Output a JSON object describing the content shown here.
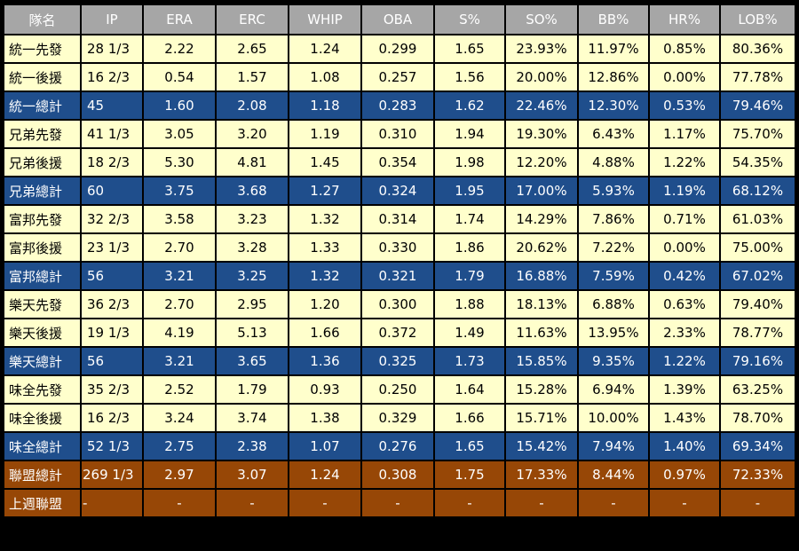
{
  "headers": [
    "隊名",
    "IP",
    "ERA",
    "ERC",
    "WHIP",
    "OBA",
    "S%",
    "SO%",
    "BB%",
    "HR%",
    "LOB%"
  ],
  "rows": [
    {
      "type": "pos",
      "cells": [
        "統一先發",
        "28 1/3",
        "2.22",
        "2.65",
        "1.24",
        "0.299",
        "1.65",
        "23.93%",
        "11.97%",
        "0.85%",
        "80.36%"
      ]
    },
    {
      "type": "pos",
      "cells": [
        "統一後援",
        "16 2/3",
        "0.54",
        "1.57",
        "1.08",
        "0.257",
        "1.56",
        "20.00%",
        "12.86%",
        "0.00%",
        "77.78%"
      ]
    },
    {
      "type": "team",
      "cells": [
        "統一總計",
        "45",
        "1.60",
        "2.08",
        "1.18",
        "0.283",
        "1.62",
        "22.46%",
        "12.30%",
        "0.53%",
        "79.46%"
      ]
    },
    {
      "type": "pos",
      "cells": [
        "兄弟先發",
        "41 1/3",
        "3.05",
        "3.20",
        "1.19",
        "0.310",
        "1.94",
        "19.30%",
        "6.43%",
        "1.17%",
        "75.70%"
      ]
    },
    {
      "type": "pos",
      "cells": [
        "兄弟後援",
        "18 2/3",
        "5.30",
        "4.81",
        "1.45",
        "0.354",
        "1.98",
        "12.20%",
        "4.88%",
        "1.22%",
        "54.35%"
      ]
    },
    {
      "type": "team",
      "cells": [
        "兄弟總計",
        "60",
        "3.75",
        "3.68",
        "1.27",
        "0.324",
        "1.95",
        "17.00%",
        "5.93%",
        "1.19%",
        "68.12%"
      ]
    },
    {
      "type": "pos",
      "cells": [
        "富邦先發",
        "32 2/3",
        "3.58",
        "3.23",
        "1.32",
        "0.314",
        "1.74",
        "14.29%",
        "7.86%",
        "0.71%",
        "61.03%"
      ]
    },
    {
      "type": "pos",
      "cells": [
        "富邦後援",
        "23 1/3",
        "2.70",
        "3.28",
        "1.33",
        "0.330",
        "1.86",
        "20.62%",
        "7.22%",
        "0.00%",
        "75.00%"
      ]
    },
    {
      "type": "team",
      "cells": [
        "富邦總計",
        "56",
        "3.21",
        "3.25",
        "1.32",
        "0.321",
        "1.79",
        "16.88%",
        "7.59%",
        "0.42%",
        "67.02%"
      ]
    },
    {
      "type": "pos",
      "cells": [
        "樂天先發",
        "36 2/3",
        "2.70",
        "2.95",
        "1.20",
        "0.300",
        "1.88",
        "18.13%",
        "6.88%",
        "0.63%",
        "79.40%"
      ]
    },
    {
      "type": "pos",
      "cells": [
        "樂天後援",
        "19 1/3",
        "4.19",
        "5.13",
        "1.66",
        "0.372",
        "1.49",
        "11.63%",
        "13.95%",
        "2.33%",
        "78.77%"
      ]
    },
    {
      "type": "team",
      "cells": [
        "樂天總計",
        "56",
        "3.21",
        "3.65",
        "1.36",
        "0.325",
        "1.73",
        "15.85%",
        "9.35%",
        "1.22%",
        "79.16%"
      ]
    },
    {
      "type": "pos",
      "cells": [
        "味全先發",
        "35 2/3",
        "2.52",
        "1.79",
        "0.93",
        "0.250",
        "1.64",
        "15.28%",
        "6.94%",
        "1.39%",
        "63.25%"
      ]
    },
    {
      "type": "pos",
      "cells": [
        "味全後援",
        "16 2/3",
        "3.24",
        "3.74",
        "1.38",
        "0.329",
        "1.66",
        "15.71%",
        "10.00%",
        "1.43%",
        "78.70%"
      ]
    },
    {
      "type": "team",
      "cells": [
        "味全總計",
        "52 1/3",
        "2.75",
        "2.38",
        "1.07",
        "0.276",
        "1.65",
        "15.42%",
        "7.94%",
        "1.40%",
        "69.34%"
      ]
    },
    {
      "type": "league",
      "cells": [
        "聯盟總計",
        "269 1/3",
        "2.97",
        "3.07",
        "1.24",
        "0.308",
        "1.75",
        "17.33%",
        "8.44%",
        "0.97%",
        "72.33%"
      ]
    },
    {
      "type": "league",
      "cells": [
        "上週聯盟",
        "-",
        "-",
        "-",
        "-",
        "-",
        "-",
        "-",
        "-",
        "-",
        "-"
      ]
    }
  ]
}
